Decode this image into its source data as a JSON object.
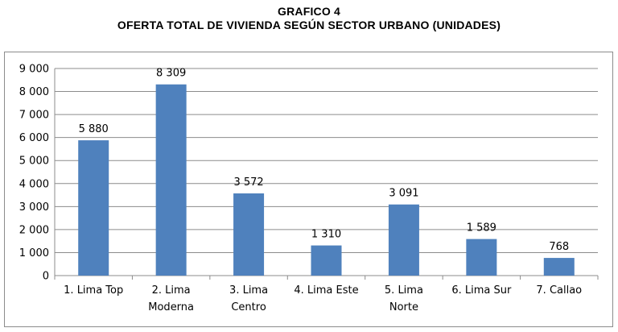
{
  "header": {
    "title": "GRAFICO 4",
    "subtitle": "OFERTA TOTAL DE VIVIENDA SEGÚN SECTOR URBANO (UNIDADES)"
  },
  "chart_data": {
    "type": "bar",
    "title": "GRAFICO 4",
    "subtitle": "OFERTA TOTAL DE VIVIENDA SEGÚN SECTOR URBANO (UNIDADES)",
    "categories": [
      [
        "1. Lima Top"
      ],
      [
        "2. Lima",
        "Moderna"
      ],
      [
        "3. Lima",
        "Centro"
      ],
      [
        "4. Lima Este"
      ],
      [
        "5. Lima",
        "Norte"
      ],
      [
        "6. Lima Sur"
      ],
      [
        "7. Callao"
      ]
    ],
    "values": [
      5880,
      8309,
      3572,
      1310,
      3091,
      1589,
      768
    ],
    "value_labels": [
      "5 880",
      "8 309",
      "3 572",
      "1 310",
      "3 091",
      "1 589",
      "768"
    ],
    "yticks": [
      0,
      1000,
      2000,
      3000,
      4000,
      5000,
      6000,
      7000,
      8000,
      9000
    ],
    "ytick_labels": [
      "0",
      "1 000",
      "2 000",
      "3 000",
      "4 000",
      "5 000",
      "6 000",
      "7 000",
      "8 000",
      "9 000"
    ],
    "ylim": [
      0,
      9000
    ],
    "grid": true,
    "legend": "none",
    "bar_color": "#4f81bd",
    "grid_color": "#8c8c8c"
  }
}
